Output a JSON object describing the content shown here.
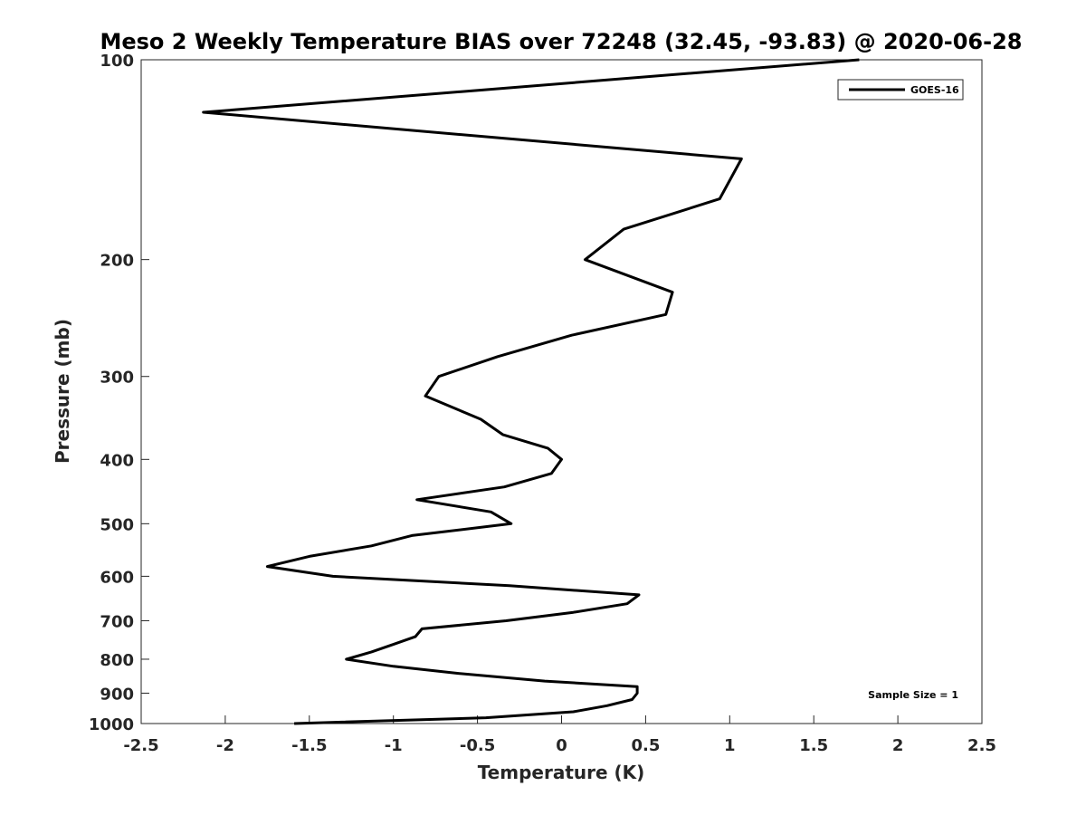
{
  "chart_data": {
    "type": "line",
    "title": "Meso 2 Weekly Temperature BIAS over 72248 (32.45, -93.83) @ 2020-06-28",
    "xlabel": "Temperature (K)",
    "ylabel": "Pressure (mb)",
    "xlim": [
      -2.5,
      2.5
    ],
    "ylim": [
      1000,
      100
    ],
    "yscale": "log",
    "yreverse": true,
    "grid": false,
    "legend_position": "top-right",
    "x_ticks": [
      -2.5,
      -2,
      -1.5,
      -1,
      -0.5,
      0,
      0.5,
      1,
      1.5,
      2,
      2.5
    ],
    "x_tick_labels": [
      "-2.5",
      "-2",
      "-1.5",
      "-1",
      "-0.5",
      "0",
      "0.5",
      "1",
      "1.5",
      "2",
      "2.5"
    ],
    "y_ticks": [
      100,
      200,
      300,
      400,
      500,
      600,
      700,
      800,
      900,
      1000
    ],
    "y_tick_labels": [
      "100",
      "200",
      "300",
      "400",
      "500",
      "600",
      "700",
      "800",
      "900",
      "1000"
    ],
    "annotation": "Sample Size = 1",
    "series": [
      {
        "name": "GOES-16",
        "color": "#000000",
        "points": [
          [
            1.77,
            100
          ],
          [
            -2.13,
            120
          ],
          [
            1.07,
            141
          ],
          [
            0.94,
            162
          ],
          [
            0.37,
            180
          ],
          [
            0.14,
            200
          ],
          [
            0.66,
            224
          ],
          [
            0.62,
            242
          ],
          [
            0.06,
            260
          ],
          [
            -0.38,
            280
          ],
          [
            -0.73,
            300
          ],
          [
            -0.81,
            321
          ],
          [
            -0.48,
            348
          ],
          [
            -0.35,
            367
          ],
          [
            -0.08,
            385
          ],
          [
            0.0,
            400
          ],
          [
            -0.06,
            420
          ],
          [
            -0.34,
            440
          ],
          [
            -0.86,
            460
          ],
          [
            -0.42,
            480
          ],
          [
            -0.3,
            500
          ],
          [
            -0.89,
            521
          ],
          [
            -1.13,
            540
          ],
          [
            -1.5,
            560
          ],
          [
            -1.75,
            580
          ],
          [
            -1.36,
            600
          ],
          [
            -0.31,
            620
          ],
          [
            0.46,
            640
          ],
          [
            0.39,
            660
          ],
          [
            0.07,
            680
          ],
          [
            -0.33,
            700
          ],
          [
            -0.83,
            720
          ],
          [
            -0.87,
            740
          ],
          [
            -1.0,
            760
          ],
          [
            -1.13,
            780
          ],
          [
            -1.28,
            800
          ],
          [
            -1.0,
            820
          ],
          [
            -0.62,
            840
          ],
          [
            -0.1,
            863
          ],
          [
            0.45,
            880
          ],
          [
            0.45,
            900
          ],
          [
            0.42,
            920
          ],
          [
            0.27,
            940
          ],
          [
            0.07,
            960
          ],
          [
            -0.45,
            980
          ],
          [
            -1.59,
            1000
          ]
        ]
      }
    ]
  }
}
